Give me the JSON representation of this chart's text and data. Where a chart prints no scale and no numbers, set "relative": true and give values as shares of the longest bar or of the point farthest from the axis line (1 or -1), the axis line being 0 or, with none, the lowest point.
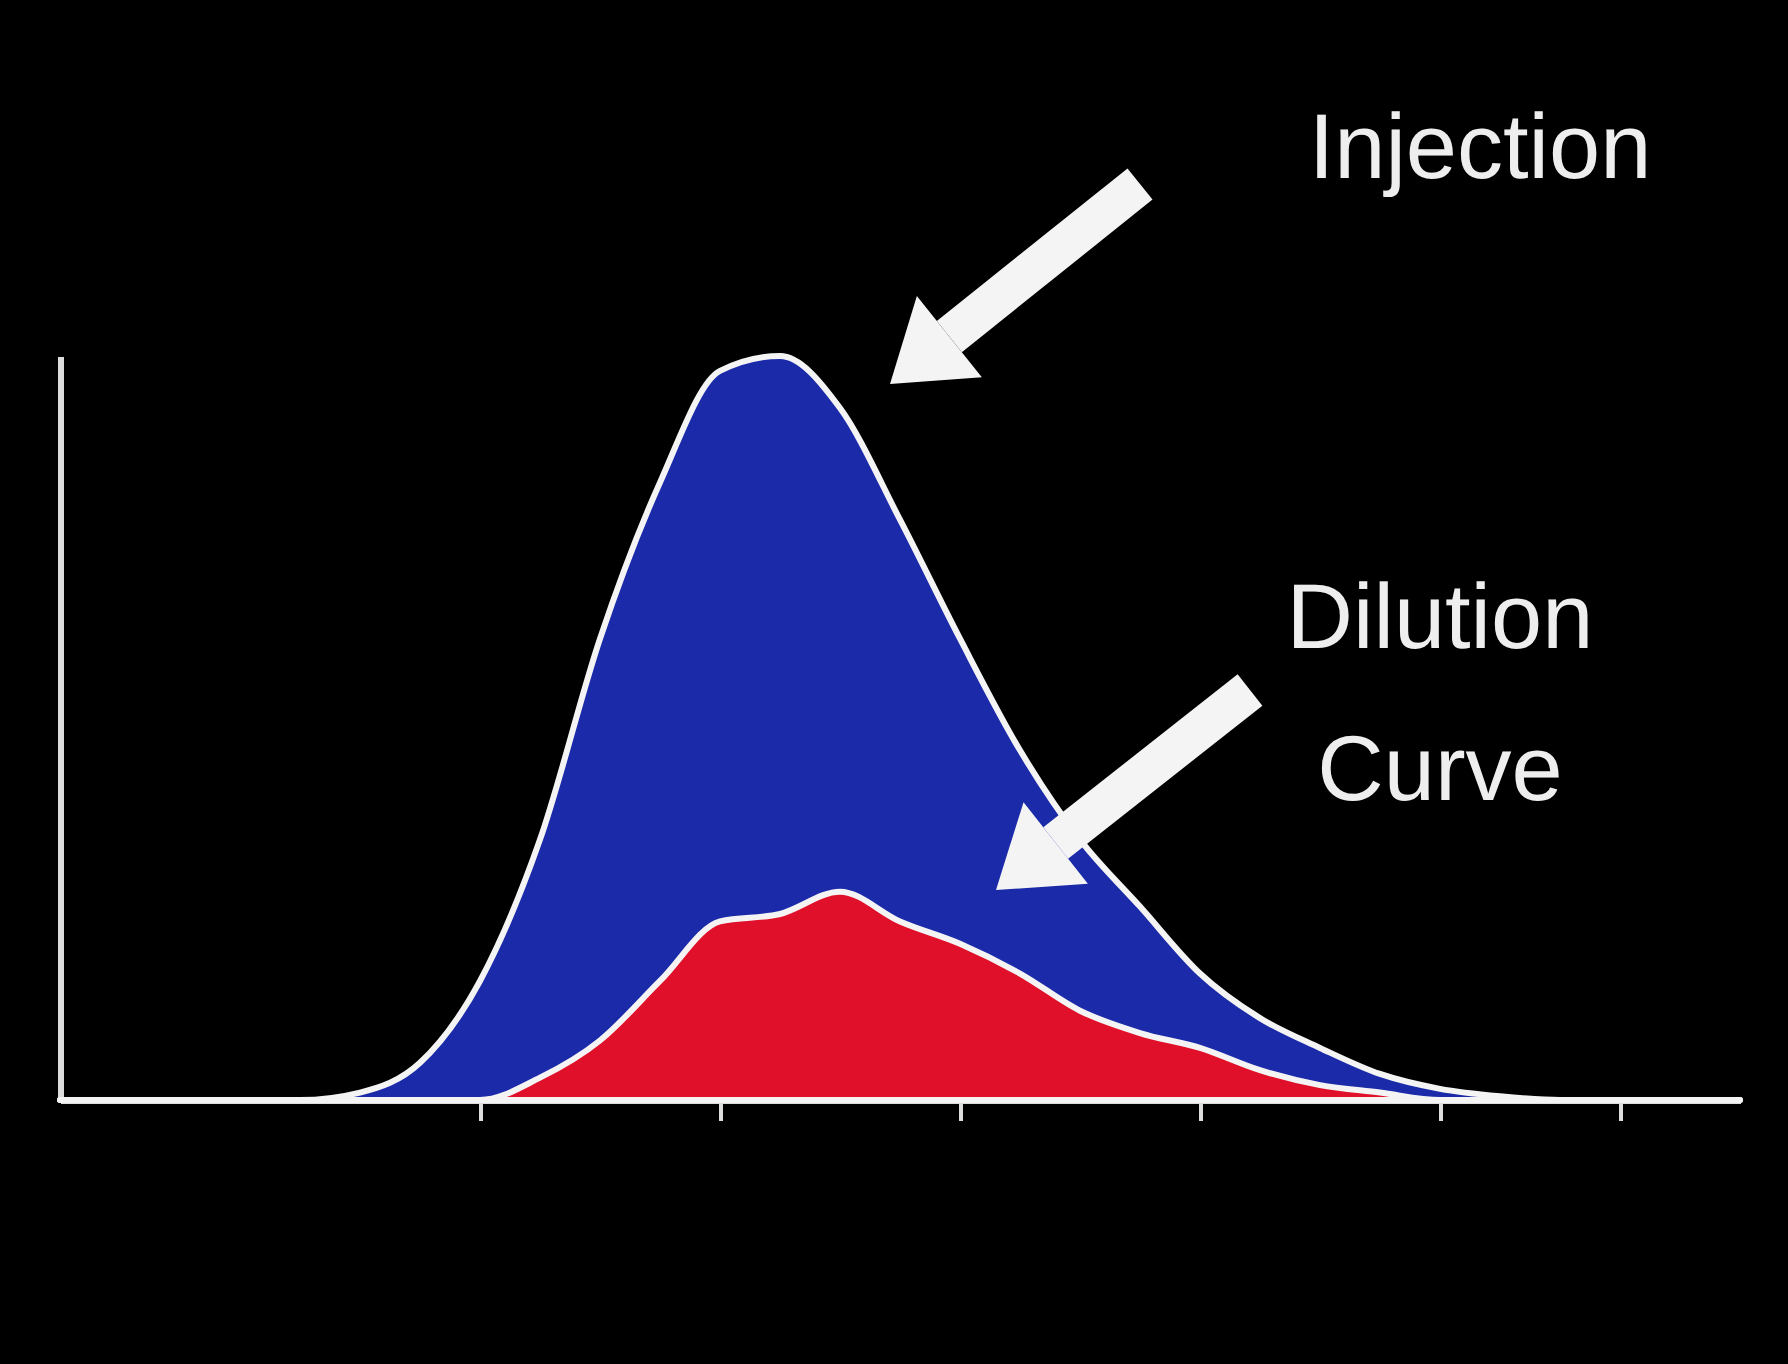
{
  "chart_data": {
    "type": "area",
    "relative": true,
    "categories": [
      null,
      null,
      null,
      null,
      null,
      null,
      null,
      null,
      null,
      null,
      null,
      null,
      null,
      null,
      null,
      null,
      null,
      null,
      null,
      null,
      null,
      null,
      null,
      null,
      null,
      null,
      null,
      null,
      null
    ],
    "series": [
      {
        "color": "#1a2aa8",
        "values": [
          0,
          0,
          0,
          0,
          0,
          0.01,
          0.05,
          0.16,
          0.35,
          0.62,
          0.83,
          0.98,
          1,
          0.93,
          0.78,
          0.62,
          0.47,
          0.35,
          0.26,
          0.17,
          0.11,
          0.07,
          0.035,
          0.015,
          0.005,
          0,
          0,
          0,
          0
        ]
      },
      {
        "color": "#e0102a",
        "values": [
          0,
          0,
          0,
          0,
          0,
          0,
          0,
          0,
          0.03,
          0.08,
          0.16,
          0.24,
          0.25,
          0.28,
          0.24,
          0.21,
          0.17,
          0.12,
          0.09,
          0.07,
          0.04,
          0.02,
          0.01,
          0,
          0,
          0,
          0,
          0,
          0
        ]
      }
    ],
    "annotations": [
      "Injection",
      "Dilution Curve"
    ]
  }
}
